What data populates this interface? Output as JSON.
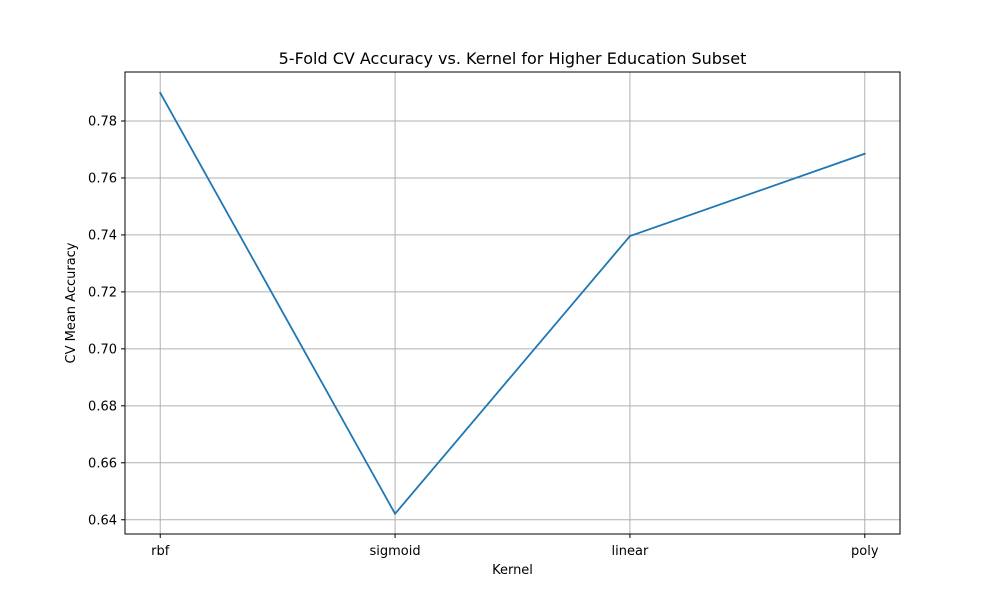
{
  "chart_data": {
    "type": "line",
    "title": "5-Fold CV Accuracy vs. Kernel for Higher Education Subset",
    "xlabel": "Kernel",
    "ylabel": "CV Mean Accuracy",
    "categories": [
      "rbf",
      "sigmoid",
      "linear",
      "poly"
    ],
    "series": [
      {
        "values": [
          0.7899,
          0.6421,
          0.7396,
          0.7685
        ]
      }
    ],
    "ylim": [
      0.635,
      0.7972
    ],
    "yticks": [
      0.64,
      0.66,
      0.68,
      0.7,
      0.72,
      0.74,
      0.76,
      0.78
    ],
    "ytick_labels": [
      "0.64",
      "0.66",
      "0.68",
      "0.70",
      "0.72",
      "0.74",
      "0.76",
      "0.78"
    ],
    "grid": true,
    "colors": {
      "line": "#1f77b4",
      "grid": "#b0b0b0",
      "axes": "#000000"
    }
  }
}
